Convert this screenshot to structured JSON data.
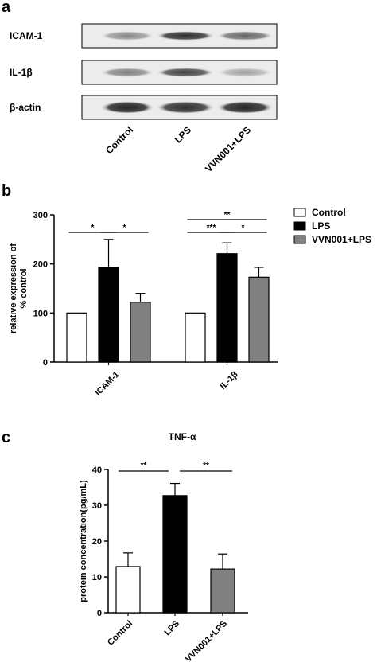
{
  "panels": {
    "a": "a",
    "b": "b",
    "c": "c"
  },
  "western_blot": {
    "rows": [
      "ICAM-1",
      "IL-1β",
      "β-actin"
    ],
    "lanes": [
      "Control",
      "LPS",
      "VVN001+LPS"
    ],
    "band_intensity": {
      "ICAM-1": [
        0.55,
        0.95,
        0.7
      ],
      "IL-1β": [
        0.6,
        0.85,
        0.45
      ],
      "β-actin": [
        1.0,
        0.95,
        1.0
      ]
    }
  },
  "chart_data": [
    {
      "type": "bar",
      "title": "",
      "xlabel": "",
      "ylabel": "relative expression of % control",
      "ylabel_lines": [
        "relative expression of",
        "% control"
      ],
      "ylim": [
        0,
        300
      ],
      "yticks": [
        "0",
        "100",
        "200",
        "300"
      ],
      "groups": [
        "ICAM-1",
        "IL-1β"
      ],
      "series": [
        {
          "name": "Control",
          "values": [
            100,
            100
          ],
          "errors": [
            0,
            0
          ],
          "color": "#ffffff"
        },
        {
          "name": "LPS",
          "values": [
            193,
            221
          ],
          "errors": [
            57,
            22
          ],
          "color": "#000000"
        },
        {
          "name": "VVN001+LPS",
          "values": [
            122,
            173
          ],
          "errors": [
            18,
            20
          ],
          "color": "#808080"
        }
      ],
      "legend": [
        "Control",
        "LPS",
        "VVN001+LPS"
      ],
      "legend_placement": "top-right",
      "significance": [
        {
          "group": 0,
          "from": 0,
          "to": 1,
          "label": "*"
        },
        {
          "group": 0,
          "from": 1,
          "to": 2,
          "label": "*"
        },
        {
          "group": 1,
          "from": 0,
          "to": 2,
          "label": "**"
        },
        {
          "group": 1,
          "from": 0,
          "to": 1,
          "label": "***"
        },
        {
          "group": 1,
          "from": 1,
          "to": 2,
          "label": "*"
        }
      ]
    },
    {
      "type": "bar",
      "title": "TNF-α",
      "xlabel": "",
      "ylabel": "protein concentration(pg/mL)",
      "ylim": [
        0,
        40
      ],
      "yticks": [
        "0",
        "10",
        "20",
        "30",
        "40"
      ],
      "categories": [
        "Control",
        "LPS",
        "VVN001+LPS"
      ],
      "values": [
        12.9,
        32.7,
        12.2
      ],
      "errors": [
        3.8,
        3.4,
        4.2
      ],
      "colors": [
        "#ffffff",
        "#000000",
        "#808080"
      ],
      "significance": [
        {
          "from": 0,
          "to": 1,
          "label": "**"
        },
        {
          "from": 1,
          "to": 2,
          "label": "**"
        }
      ]
    }
  ]
}
